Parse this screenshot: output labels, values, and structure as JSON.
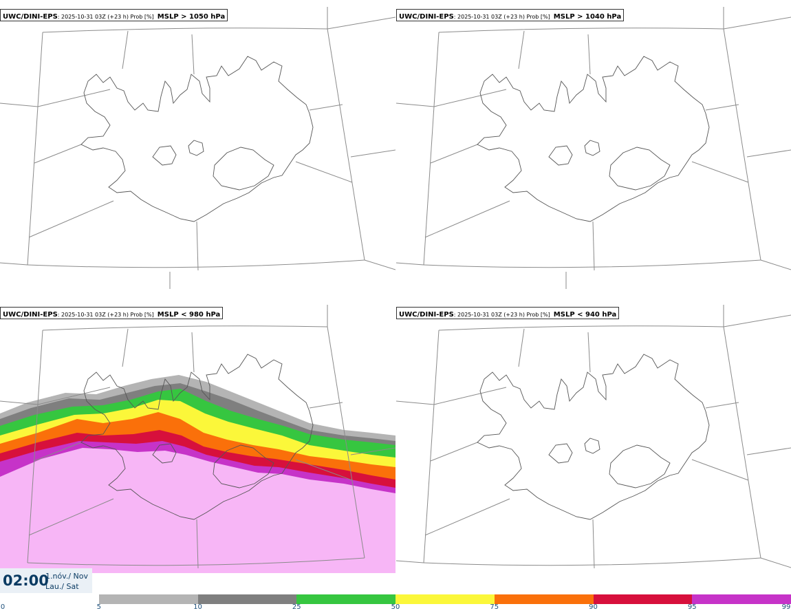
{
  "panels": [
    {
      "model": "UWC/DINI-EPS",
      "sep": ": ",
      "run": "2025-10-31 03Z (+23 h) Prob [%]",
      "threshold": "MSLP > 1050 hPa"
    },
    {
      "model": "UWC/DINI-EPS",
      "sep": ": ",
      "run": "2025-10-31 03Z (+23 h) Prob [%]",
      "threshold": "MSLP > 1040 hPa"
    },
    {
      "model": "UWC/DINI-EPS",
      "sep": ": ",
      "run": "2025-10-31 03Z (+23 h) Prob [%]",
      "threshold": "MSLP < 980 hPa"
    },
    {
      "model": "UWC/DINI-EPS",
      "sep": ": ",
      "run": "2025-10-31 03Z (+23 h) Prob [%]",
      "threshold": "MSLP < 940 hPa"
    }
  ],
  "valid_time": {
    "time": "02:00",
    "date_line1": "1.nóv./ Nov",
    "date_line2": "Lau./ Sat"
  },
  "colorbar": {
    "ticks": [
      "0",
      "5",
      "10",
      "25",
      "50",
      "75",
      "90",
      "95",
      "99"
    ],
    "colors": [
      "#ffffff",
      "#b4b4b4",
      "#7f7f7f",
      "#36c640",
      "#fbf73a",
      "#fa700a",
      "#d7103c",
      "#c633c8",
      "#f7b6f6"
    ]
  }
}
